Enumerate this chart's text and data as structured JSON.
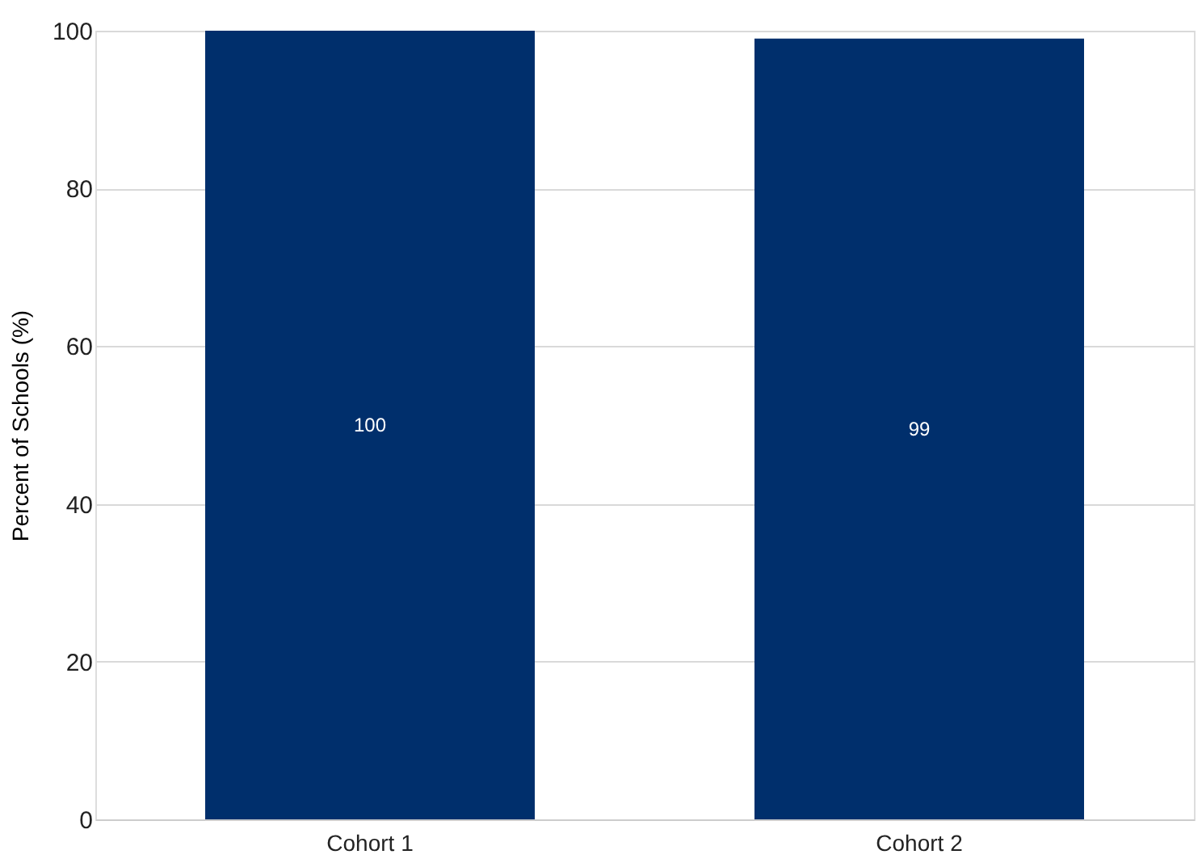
{
  "chart_data": {
    "type": "bar",
    "ylabel": "Percent of Schools (%)",
    "categories": [
      "Cohort 1",
      "Cohort 2"
    ],
    "values": [
      100,
      99
    ],
    "color": "#002f6c",
    "ylim": [
      0,
      100
    ],
    "yticks": [
      0,
      20,
      40,
      60,
      80,
      100
    ],
    "grid": "y",
    "data_labels": true
  }
}
